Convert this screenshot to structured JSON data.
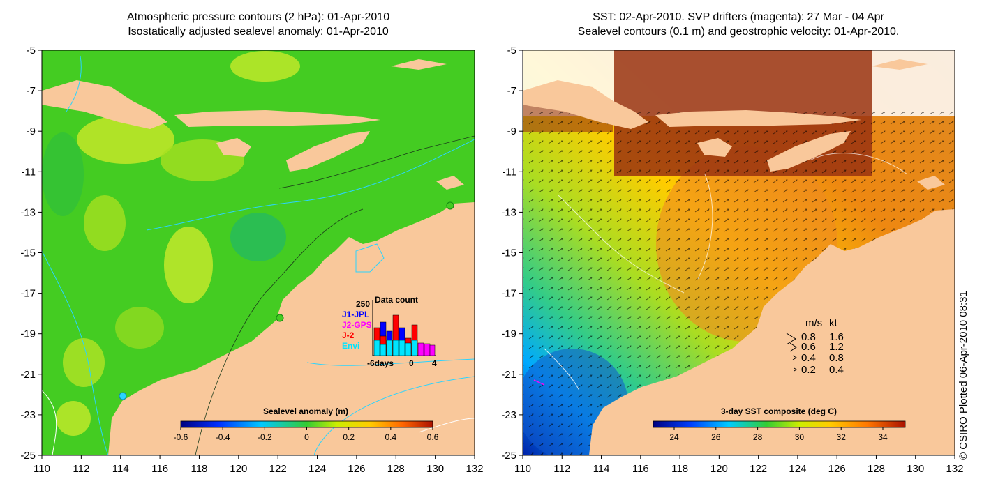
{
  "left_panel": {
    "title_line1": "Atmospheric pressure contours (2 hPa): 01-Apr-2010",
    "title_line2": "Isostatically adjusted sealevel anomaly: 01-Apr-2010",
    "colorbar": {
      "title": "Sealevel anomaly (m)",
      "ticks": [
        "-0.6",
        "-0.4",
        "-0.2",
        "0",
        "0.2",
        "0.4",
        "0.6"
      ]
    },
    "data_count": {
      "title": "Data count",
      "max_label": "250",
      "legend": [
        {
          "name": "J1-JPL",
          "color": "#0000ff"
        },
        {
          "name": "J2-GPS",
          "color": "#ff00ff"
        },
        {
          "name": "J-2",
          "color": "#ff0000"
        },
        {
          "name": "Envi",
          "color": "#00e5ff"
        }
      ],
      "x_labels": [
        "-6days",
        "0",
        "4"
      ]
    }
  },
  "right_panel": {
    "title_line1": "SST: 02-Apr-2010. SVP drifters (magenta): 27 Mar - 04 Apr",
    "title_line2": "Sealevel contours (0.1 m) and geostrophic velocity: 01-Apr-2010.",
    "colorbar": {
      "title": "3-day SST composite (deg C)",
      "ticks": [
        "24",
        "26",
        "28",
        "30",
        "32",
        "34"
      ]
    },
    "velocity_legend": {
      "header_ms": "m/s",
      "header_kt": "kt",
      "rows": [
        {
          "ms": "0.8",
          "kt": "1.6"
        },
        {
          "ms": "0.6",
          "kt": "1.2"
        },
        {
          "ms": "0.4",
          "kt": "0.8"
        },
        {
          "ms": "0.2",
          "kt": "0.4"
        }
      ]
    }
  },
  "axes": {
    "y_labels": [
      "-5",
      "-7",
      "-9",
      "-11",
      "-13",
      "-15",
      "-17",
      "-19",
      "-21",
      "-23",
      "-25"
    ],
    "x_labels": [
      "110",
      "112",
      "114",
      "116",
      "118",
      "120",
      "122",
      "124",
      "126",
      "128",
      "130",
      "132"
    ]
  },
  "footer": {
    "plotted": "© CSIRO Plotted 06-Apr-2010 08:31"
  },
  "colors": {
    "land": "#f9c89b",
    "sea_green": "#44cc22",
    "sst_orange": "#e88a1a"
  }
}
